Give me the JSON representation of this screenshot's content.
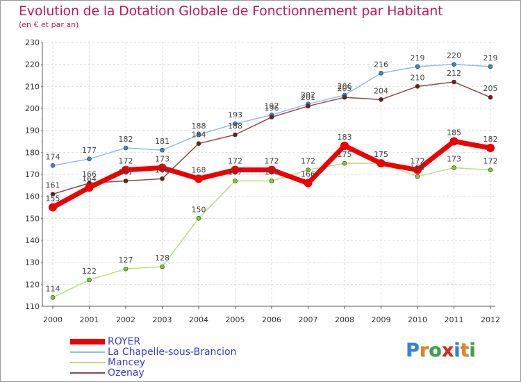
{
  "header": {
    "title": "Evolution de la Dotation Globale de Fonctionnement par Habitant",
    "subtitle": "(en € et par an)"
  },
  "logo": {
    "text": "Proxiti",
    "letters": [
      "P",
      "r",
      "o",
      "x",
      "i",
      "t",
      "i"
    ],
    "letter_colors": [
      "#2e86d4",
      "#e8821c",
      "#35a844",
      "#d8261c",
      "#2e86d4",
      "#e8821c",
      "#35a844"
    ]
  },
  "chart_data": {
    "type": "line",
    "title": "Evolution de la Dotation Globale de Fonctionnement par Habitant",
    "subtitle": "(en € et par an)",
    "xlabel": "",
    "ylabel": "",
    "categories": [
      "2000",
      "2001",
      "2002",
      "2003",
      "2004",
      "2005",
      "2006",
      "2007",
      "2008",
      "2009",
      "2010",
      "2011",
      "2012"
    ],
    "ylim": [
      110,
      230
    ],
    "yticks": [
      "110",
      "120",
      "130",
      "140",
      "150",
      "160",
      "170",
      "180",
      "190",
      "200",
      "210",
      "220",
      "230"
    ],
    "grid": true,
    "legend_position": "bottom-left",
    "series": [
      {
        "name": "ROYER",
        "color": "#ee0000",
        "line_color": "#ee0000",
        "bold": true,
        "values": [
          155,
          164,
          172,
          173,
          168,
          172,
          172,
          166,
          183,
          175,
          172,
          185,
          182
        ],
        "labels": [
          "155",
          "164",
          "172",
          "173",
          "168",
          "172",
          "172",
          "166",
          "183",
          "175",
          "172",
          "185",
          "182"
        ]
      },
      {
        "name": "La Chapelle-sous-Brancion",
        "color": "#3b88c8",
        "line_color": "#8fbfe6",
        "bold": false,
        "values": [
          174,
          177,
          182,
          181,
          188,
          193,
          197,
          202,
          206,
          216,
          219,
          220,
          219
        ],
        "labels": [
          "174",
          "177",
          "182",
          "181",
          "188",
          "193",
          "197",
          "202",
          "206",
          "216",
          "219",
          "220",
          "219"
        ]
      },
      {
        "name": "Mancey",
        "color": "#7ec832",
        "line_color": "#b4e27c",
        "bold": false,
        "values": [
          114,
          122,
          127,
          128,
          150,
          167,
          167,
          172,
          175,
          175,
          169,
          173,
          172
        ],
        "labels": [
          "114",
          "122",
          "127",
          "128",
          "150",
          "167",
          "167",
          "172",
          "175",
          "175",
          "169",
          "173",
          "172"
        ]
      },
      {
        "name": "Ozenay",
        "color": "#6e1e1e",
        "line_color": "#8a4a4a",
        "bold": false,
        "values": [
          161,
          166,
          167,
          168,
          184,
          188,
          196,
          201,
          205,
          204,
          210,
          212,
          205
        ],
        "labels": [
          "161",
          "166",
          "167",
          "168",
          "184",
          "188",
          "196",
          "201",
          "205",
          "204",
          "210",
          "212",
          "205"
        ]
      }
    ]
  }
}
